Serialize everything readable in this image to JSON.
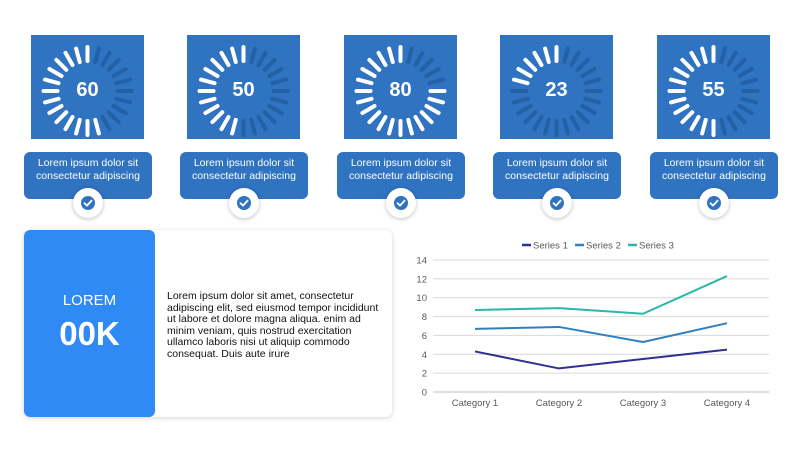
{
  "kpis": [
    {
      "value": "60",
      "caption_line1": "Lorem ipsum dolor sit",
      "caption_line2": "consectetur adipiscing",
      "percent": 60
    },
    {
      "value": "50",
      "caption_line1": "Lorem ipsum dolor sit",
      "caption_line2": "consectetur adipiscing",
      "percent": 50
    },
    {
      "value": "80",
      "caption_line1": "Lorem ipsum dolor sit",
      "caption_line2": "consectetur adipiscing",
      "percent": 80
    },
    {
      "value": "23",
      "caption_line1": "Lorem ipsum dolor sit",
      "caption_line2": "consectetur adipiscing",
      "percent": 23
    },
    {
      "value": "55",
      "caption_line1": "Lorem ipsum dolor sit",
      "caption_line2": "consectetur adipiscing",
      "percent": 55
    }
  ],
  "card": {
    "label": "LOREM",
    "value": "00K",
    "text": "Lorem ipsum dolor sit amet, consectetur adipiscing elit, sed  eiusmod tempor incididunt ut labore et dolore magna aliqua.  enim ad minim veniam, quis nostrud exercitation ullamco laboris nisi ut aliquip  commodo consequat. Duis aute irure"
  },
  "colors": {
    "kpi_blue": "#2f73c1",
    "card_blue": "#2f8af5",
    "tick_on": "#ffffff",
    "tick_off": "#2460a6"
  },
  "icons": {
    "check": "check-circle-icon"
  },
  "chart_data": {
    "type": "line",
    "categories": [
      "Category 1",
      "Category 2",
      "Category 3",
      "Category 4"
    ],
    "series": [
      {
        "name": "Series 1",
        "values": [
          4.3,
          2.5,
          3.5,
          4.5
        ],
        "color": "#2e3192"
      },
      {
        "name": "Series 2",
        "values": [
          6.7,
          6.9,
          5.3,
          7.3
        ],
        "color": "#2f7fc1"
      },
      {
        "name": "Series 3",
        "values": [
          8.7,
          8.9,
          8.3,
          12.3
        ],
        "color": "#2ab7a9"
      }
    ],
    "yticks": [
      "0",
      "2",
      "4",
      "6",
      "8",
      "10",
      "12",
      "14"
    ],
    "ylim": [
      0,
      14
    ],
    "grid": true,
    "legend": "top"
  }
}
